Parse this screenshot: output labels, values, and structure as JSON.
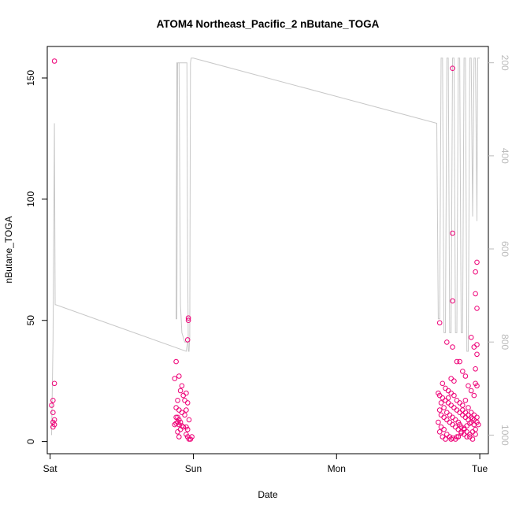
{
  "chart_data": {
    "type": "scatter",
    "title": "ATOM4 Northeast_Pacific_2 nButane_TOGA",
    "xlabel": "Date",
    "ylabel": "nButane_TOGA",
    "xlim": [
      -0.02,
      3.06
    ],
    "ylim": [
      -5,
      163
    ],
    "x_ticks": [
      {
        "label": "Sat",
        "value": 0
      },
      {
        "label": "Sun",
        "value": 1
      },
      {
        "label": "Mon",
        "value": 2
      },
      {
        "label": "Tue",
        "value": 3
      }
    ],
    "y_ticks": [
      0,
      50,
      100,
      150
    ],
    "y2_ticks": [
      200,
      400,
      600,
      800,
      1000
    ],
    "y2lim": [
      165,
      1040
    ],
    "grid": false,
    "legend": "none",
    "series": [
      {
        "name": "",
        "color": "#ee0077",
        "points": [
          [
            0.03,
            157
          ],
          [
            0.03,
            24
          ],
          [
            0.02,
            17
          ],
          [
            0.01,
            15
          ],
          [
            0.02,
            12
          ],
          [
            0.03,
            9
          ],
          [
            0.02,
            8
          ],
          [
            0.03,
            7
          ],
          [
            0.02,
            6
          ],
          [
            0.88,
            33
          ],
          [
            0.87,
            26
          ],
          [
            0.9,
            27
          ],
          [
            0.92,
            23
          ],
          [
            0.91,
            21
          ],
          [
            0.89,
            17
          ],
          [
            0.93,
            19
          ],
          [
            0.95,
            20
          ],
          [
            0.94,
            17
          ],
          [
            0.96,
            16
          ],
          [
            0.88,
            14
          ],
          [
            0.9,
            13
          ],
          [
            0.92,
            12
          ],
          [
            0.94,
            11
          ],
          [
            0.88,
            10
          ],
          [
            0.89,
            10
          ],
          [
            0.9,
            9
          ],
          [
            0.91,
            8
          ],
          [
            0.87,
            7
          ],
          [
            0.88,
            7.5
          ],
          [
            0.89,
            8
          ],
          [
            0.9,
            7
          ],
          [
            0.92,
            6.5
          ],
          [
            0.93,
            6
          ],
          [
            0.95,
            6
          ],
          [
            0.96,
            5
          ],
          [
            0.91,
            5
          ],
          [
            0.89,
            4
          ],
          [
            0.9,
            2
          ],
          [
            0.95,
            3
          ],
          [
            0.96,
            2
          ],
          [
            0.97,
            1
          ],
          [
            0.98,
            1
          ],
          [
            0.99,
            2
          ],
          [
            0.965,
            51
          ],
          [
            0.965,
            50
          ],
          [
            0.96,
            42
          ],
          [
            0.95,
            13
          ],
          [
            0.97,
            9
          ],
          [
            2.72,
            49
          ],
          [
            2.77,
            41
          ],
          [
            2.81,
            39
          ],
          [
            2.81,
            154
          ],
          [
            2.81,
            86
          ],
          [
            2.81,
            58
          ],
          [
            2.94,
            43
          ],
          [
            2.96,
            39
          ],
          [
            2.98,
            40
          ],
          [
            2.98,
            36
          ],
          [
            2.97,
            30
          ],
          [
            2.98,
            74
          ],
          [
            2.97,
            70
          ],
          [
            2.97,
            61
          ],
          [
            2.98,
            55
          ],
          [
            2.97,
            24
          ],
          [
            2.98,
            23
          ],
          [
            2.71,
            20
          ],
          [
            2.72,
            19
          ],
          [
            2.74,
            18
          ],
          [
            2.76,
            17
          ],
          [
            2.78,
            16
          ],
          [
            2.8,
            15
          ],
          [
            2.82,
            14
          ],
          [
            2.84,
            13
          ],
          [
            2.86,
            12
          ],
          [
            2.88,
            11
          ],
          [
            2.9,
            10
          ],
          [
            2.92,
            9
          ],
          [
            2.94,
            8
          ],
          [
            2.96,
            7
          ],
          [
            2.72,
            13
          ],
          [
            2.73,
            11
          ],
          [
            2.75,
            10
          ],
          [
            2.77,
            9
          ],
          [
            2.79,
            8
          ],
          [
            2.81,
            7
          ],
          [
            2.83,
            6
          ],
          [
            2.85,
            5
          ],
          [
            2.87,
            4
          ],
          [
            2.89,
            3
          ],
          [
            2.91,
            2
          ],
          [
            2.93,
            3
          ],
          [
            2.95,
            4
          ],
          [
            2.97,
            5
          ],
          [
            2.71,
            8
          ],
          [
            2.73,
            6
          ],
          [
            2.75,
            5
          ],
          [
            2.77,
            3
          ],
          [
            2.79,
            2
          ],
          [
            2.81,
            1.5
          ],
          [
            2.83,
            1
          ],
          [
            2.85,
            2
          ],
          [
            2.87,
            3.5
          ],
          [
            2.89,
            5.5
          ],
          [
            2.91,
            6.5
          ],
          [
            2.93,
            7.5
          ],
          [
            2.95,
            9.5
          ],
          [
            2.74,
            24
          ],
          [
            2.76,
            22
          ],
          [
            2.78,
            21
          ],
          [
            2.8,
            26
          ],
          [
            2.82,
            25
          ],
          [
            2.84,
            33
          ],
          [
            2.86,
            33
          ],
          [
            2.88,
            29
          ],
          [
            2.9,
            27
          ],
          [
            2.92,
            23
          ],
          [
            2.94,
            21
          ],
          [
            2.96,
            19
          ],
          [
            2.72,
            4
          ],
          [
            2.74,
            2
          ],
          [
            2.76,
            1
          ],
          [
            2.8,
            1
          ],
          [
            2.84,
            2
          ],
          [
            2.86,
            7
          ],
          [
            2.88,
            15
          ],
          [
            2.9,
            17
          ],
          [
            2.92,
            14
          ],
          [
            2.94,
            12
          ],
          [
            2.96,
            11
          ],
          [
            2.98,
            10
          ],
          [
            2.73,
            16
          ],
          [
            2.75,
            14
          ],
          [
            2.77,
            12
          ],
          [
            2.79,
            11
          ],
          [
            2.81,
            10
          ],
          [
            2.83,
            9
          ],
          [
            2.85,
            8
          ],
          [
            2.87,
            6
          ],
          [
            2.89,
            5
          ],
          [
            2.91,
            4
          ],
          [
            2.93,
            2
          ],
          [
            2.95,
            1
          ],
          [
            2.97,
            3
          ],
          [
            2.78,
            18
          ],
          [
            2.8,
            20
          ],
          [
            2.82,
            19
          ],
          [
            2.84,
            17
          ],
          [
            2.86,
            16
          ],
          [
            2.88,
            13
          ],
          [
            2.9,
            12
          ],
          [
            2.92,
            11
          ],
          [
            2.94,
            10
          ],
          [
            2.96,
            9
          ],
          [
            2.98,
            8
          ],
          [
            2.99,
            7
          ]
        ]
      }
    ],
    "overlay": {
      "name": "",
      "color": "#c8c8c8",
      "axis": "right",
      "x": [
        0.01,
        0.02,
        0.03,
        0.035,
        0.04,
        0.95,
        0.96,
        0.94,
        0.92,
        0.91,
        0.9,
        0.89,
        0.885,
        0.88,
        0.885,
        0.89,
        0.9,
        0.92,
        0.94,
        0.955,
        0.96,
        0.965,
        0.97,
        0.975,
        0.98,
        0.985,
        0.99,
        1.0,
        2.7,
        2.71,
        2.72,
        2.73,
        2.74,
        2.75,
        2.76,
        2.77,
        2.78,
        2.79,
        2.8,
        2.81,
        2.82,
        2.83,
        2.84,
        2.85,
        2.86,
        2.87,
        2.88,
        2.89,
        2.9,
        2.91,
        2.92,
        2.93,
        2.94,
        2.95,
        2.96,
        2.97,
        2.98,
        2.985,
        2.99,
        3.0
      ],
      "y": [
        1000,
        800,
        330,
        720,
        720,
        820,
        800,
        800,
        780,
        720,
        200,
        200,
        200,
        750,
        750,
        200,
        200,
        200,
        200,
        200,
        620,
        820,
        820,
        790,
        200,
        190,
        190,
        190,
        330,
        750,
        750,
        190,
        190,
        780,
        780,
        190,
        190,
        780,
        780,
        190,
        190,
        780,
        780,
        190,
        190,
        780,
        780,
        190,
        190,
        820,
        820,
        190,
        190,
        530,
        190,
        190,
        540,
        190,
        190,
        190
      ]
    }
  }
}
